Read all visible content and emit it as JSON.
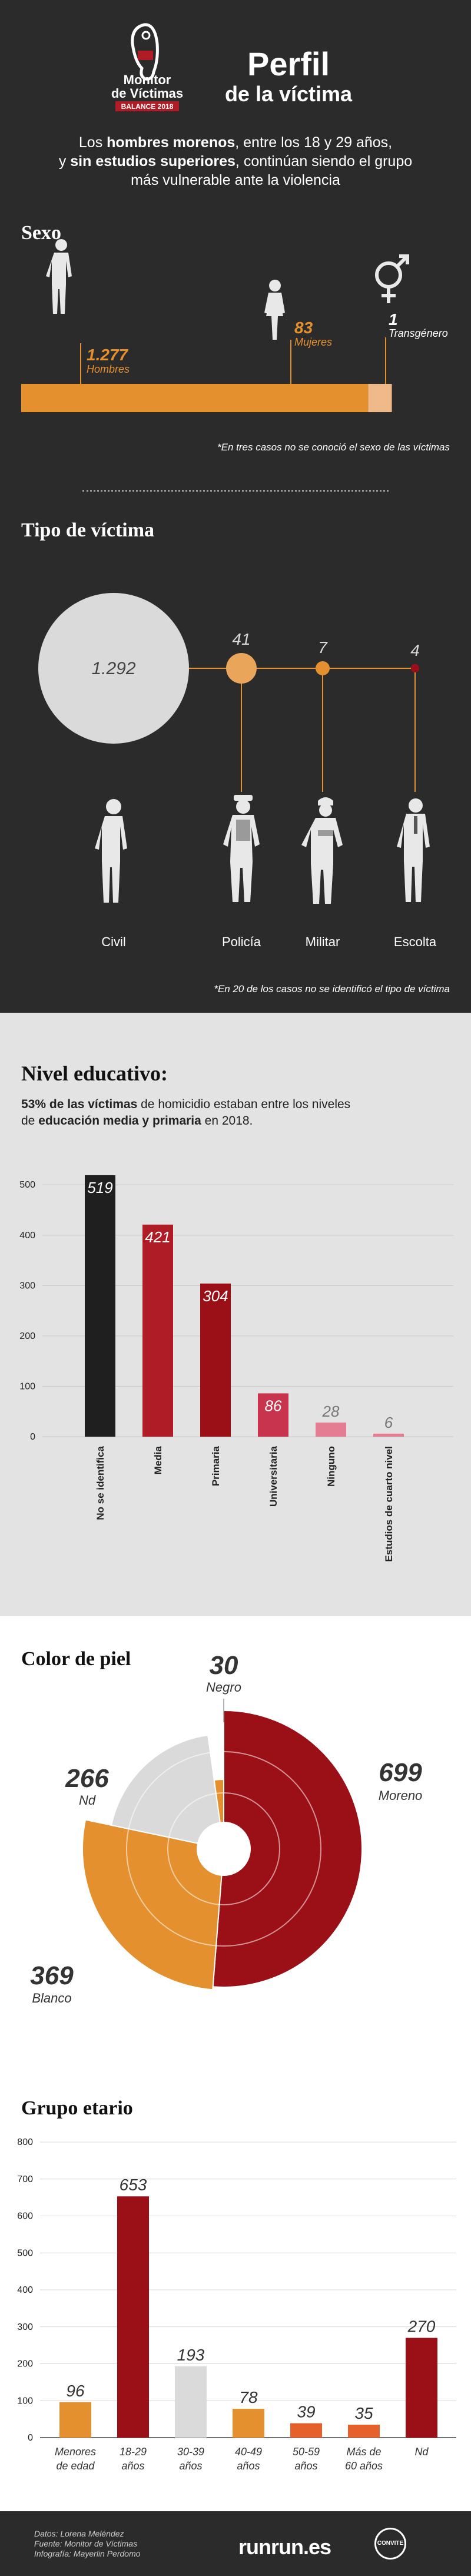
{
  "colors": {
    "orange": "#e5902e",
    "orange_light": "#e9a55a",
    "dark_red": "#9b0f16",
    "red": "#b01c26",
    "rose": "#c8344d",
    "pink": "#e57d92",
    "black": "#1f1f1f",
    "grey": "#dadada",
    "peach": "#f0b98a"
  },
  "header": {
    "logo_line1": "Monitor",
    "logo_line2": "de Víctimas",
    "logo_badge": "BALANCE 2018",
    "title_line1": "Perfil",
    "title_line2": "de la víctima",
    "intro_line1_pre": "Los ",
    "intro_line1_b": "hombres morenos",
    "intro_line1_post": ", entre los 18 y 29 años,",
    "intro_line2_pre": "y ",
    "intro_line2_b": "sin estudios superiores",
    "intro_line2_post": ", continúan siendo el grupo",
    "intro_line3": "más vulnerable ante la violencia"
  },
  "sexo": {
    "title": "Sexo",
    "hombres_value": "1.277",
    "hombres_label": "Hombres",
    "mujeres_value": "83",
    "mujeres_label": "Mujeres",
    "trans_value": "1",
    "trans_label": "Transgénero",
    "note": "*En tres casos no se conoció el sexo de las víctimas",
    "icons": {
      "male": "male-figure-icon",
      "female": "female-figure-icon",
      "gender": "transgender-symbol-icon"
    }
  },
  "tipo": {
    "title": "Tipo de víctima",
    "items": [
      {
        "label": "Civil",
        "value": "1.292",
        "icon": "civilian-figure-icon"
      },
      {
        "label": "Policía",
        "value": "41",
        "icon": "police-figure-icon"
      },
      {
        "label": "Militar",
        "value": "7",
        "icon": "soldier-figure-icon"
      },
      {
        "label": "Escolta",
        "value": "4",
        "icon": "bodyguard-figure-icon"
      }
    ],
    "note": "*En 20 de los casos no se identificó el tipo de víctima"
  },
  "nivel": {
    "title": "Nivel educativo:",
    "desc_b1": "53% de las víctimas",
    "desc_1": " de homicidio estaban entre los niveles",
    "desc_2pre": "de ",
    "desc_b2": "educación media y primaria",
    "desc_2post": " en 2018."
  },
  "color_piel": {
    "title": "Color de piel"
  },
  "grupo": {
    "title": "Grupo etario"
  },
  "footer": {
    "line1": "Datos: Lorena Meléndez",
    "line2": "Fuente: Monitor de Víctimas",
    "line3": "Infografía: Mayerlin Perdomo",
    "brand": "runrun.es",
    "partner": "CONVITE"
  },
  "chart_data": [
    {
      "type": "bar",
      "title": "Sexo",
      "orientation": "horizontal-stacked",
      "categories": [
        "Hombres",
        "Mujeres",
        "Transgénero"
      ],
      "values": [
        1277,
        83,
        1
      ]
    },
    {
      "type": "scatter",
      "title": "Tipo de víctima",
      "encoding": "bubble size",
      "categories": [
        "Civil",
        "Policía",
        "Militar",
        "Escolta"
      ],
      "values": [
        1292,
        41,
        7,
        4
      ]
    },
    {
      "type": "bar",
      "title": "Nivel educativo:",
      "categories": [
        "No se identifica",
        "Media",
        "Primaria",
        "Universitaria",
        "Ninguno",
        "Estudios de cuarto nivel"
      ],
      "values": [
        519,
        421,
        304,
        86,
        28,
        6
      ],
      "colors": [
        "#1f1f1f",
        "#b01c26",
        "#9b0f16",
        "#c8344d",
        "#e57d92",
        "#e57d92"
      ],
      "yticks": [
        0,
        100,
        200,
        300,
        400,
        500
      ],
      "ylim": [
        0,
        540
      ],
      "grid": true
    },
    {
      "type": "pie",
      "title": "Color de piel",
      "categories": [
        "Moreno",
        "Blanco",
        "Nd",
        "Negro"
      ],
      "values": [
        699,
        369,
        266,
        30
      ],
      "colors": [
        "#9b0f16",
        "#e5902e",
        "#dadada",
        "#e5902e"
      ]
    },
    {
      "type": "bar",
      "title": "Grupo etario",
      "categories": [
        "Menores de edad",
        "18-29 años",
        "30-39 años",
        "40-49 años",
        "50-59 años",
        "Más de 60 años",
        "Nd"
      ],
      "values": [
        96,
        653,
        193,
        78,
        39,
        35,
        270
      ],
      "colors": [
        "#e5902e",
        "#9b0f16",
        "#dadada",
        "#e5902e",
        "#e5602a",
        "#e5602a",
        "#9b0f16"
      ],
      "yticks": [
        0,
        100,
        200,
        300,
        400,
        500,
        600,
        700,
        800
      ],
      "ylim": [
        0,
        800
      ],
      "grid": true
    }
  ]
}
